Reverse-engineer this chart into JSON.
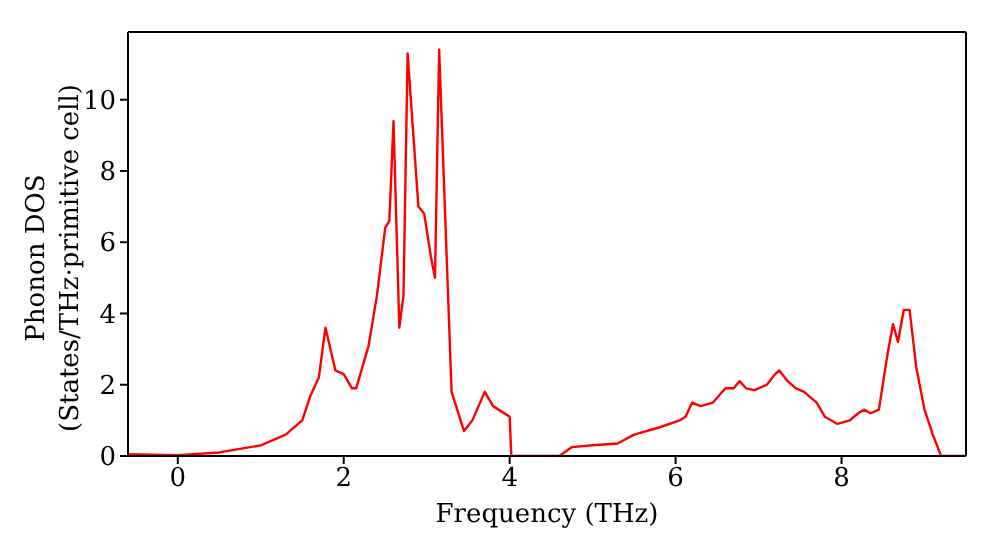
{
  "chart_data": {
    "type": "line",
    "xlabel": "Frequency (THz)",
    "ylabel": "Phonon DOS\n(States/THz·primitive cell)",
    "series": [
      {
        "color": "#ff0000",
        "x": [
          -0.6,
          0,
          0.5,
          1.0,
          1.3,
          1.5,
          1.6,
          1.7,
          1.78,
          1.9,
          2.0,
          2.1,
          2.15,
          2.3,
          2.4,
          2.5,
          2.55,
          2.6,
          2.67,
          2.72,
          2.77,
          2.9,
          2.97,
          3.05,
          3.1,
          3.15,
          3.3,
          3.45,
          3.55,
          3.7,
          3.8,
          4.0,
          4.02,
          4.05,
          4.6,
          4.75,
          5.0,
          5.3,
          5.5,
          5.8,
          6.05,
          6.12,
          6.2,
          6.3,
          6.45,
          6.6,
          6.7,
          6.77,
          6.85,
          6.95,
          7.1,
          7.2,
          7.25,
          7.35,
          7.45,
          7.55,
          7.7,
          7.8,
          7.95,
          8.1,
          8.2,
          8.27,
          8.35,
          8.45,
          8.55,
          8.62,
          8.68,
          8.75,
          8.82,
          8.9,
          9.0,
          9.1,
          9.2,
          9.5
        ],
        "values": [
          0.05,
          0.02,
          0.1,
          0.3,
          0.6,
          1.0,
          1.7,
          2.2,
          3.6,
          2.4,
          2.3,
          1.9,
          1.9,
          3.1,
          4.5,
          6.4,
          6.6,
          9.4,
          3.6,
          4.5,
          11.3,
          7.0,
          6.8,
          5.6,
          5.0,
          11.4,
          1.8,
          0.7,
          1.0,
          1.8,
          1.4,
          1.1,
          0,
          0,
          0,
          0.25,
          0.3,
          0.35,
          0.6,
          0.8,
          1.0,
          1.1,
          1.5,
          1.4,
          1.5,
          1.9,
          1.9,
          2.1,
          1.9,
          1.85,
          2.0,
          2.3,
          2.4,
          2.1,
          1.9,
          1.8,
          1.5,
          1.1,
          0.9,
          1.0,
          1.2,
          1.3,
          1.2,
          1.3,
          2.8,
          3.7,
          3.2,
          4.1,
          4.1,
          2.5,
          1.3,
          0.6,
          0,
          0
        ]
      }
    ],
    "xlim": [
      -0.6,
      9.5
    ],
    "xticks": [
      0,
      2,
      4,
      6,
      8
    ],
    "ylim": [
      0,
      11.9
    ],
    "yticks": [
      0,
      2,
      4,
      6,
      8,
      10
    ],
    "grid": false,
    "legend": false,
    "marker": "none",
    "line_style": "solid"
  }
}
